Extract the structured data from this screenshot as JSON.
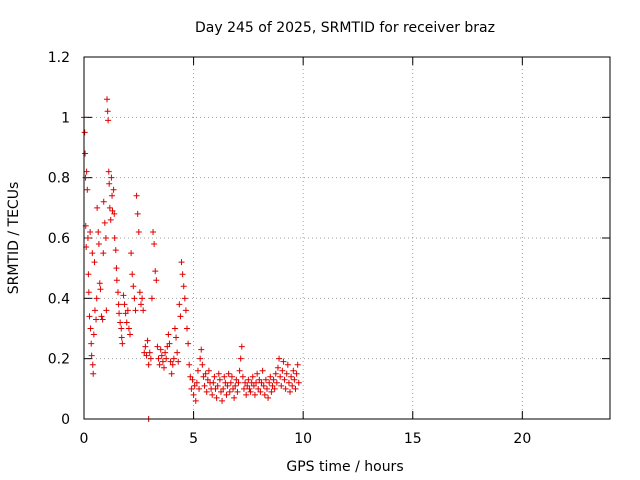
{
  "chart_data": {
    "type": "scatter",
    "title": "Day 245 of 2025, SRMTID for receiver braz",
    "xlabel": "GPS time / hours",
    "ylabel": "SRMTID / TECUs",
    "xlim": [
      0,
      24
    ],
    "ylim": [
      0,
      1.2
    ],
    "xticks": [
      0,
      5,
      10,
      15,
      20
    ],
    "xtick_labels": [
      "0",
      "5",
      "10",
      "15",
      "20"
    ],
    "yticks": [
      0,
      0.2,
      0.4,
      0.6,
      0.8,
      1.0,
      1.2
    ],
    "ytick_labels": [
      "0",
      "0.2",
      "0.4",
      "0.6",
      "0.8",
      "1",
      "1.2"
    ],
    "grid": true,
    "marker": "+",
    "color": "#e00000",
    "series": [
      {
        "name": "SRMTID",
        "points": [
          [
            0.0,
            1.0
          ],
          [
            0.03,
            0.95
          ],
          [
            0.05,
            0.88
          ],
          [
            0.07,
            0.8
          ],
          [
            0.08,
            0.64
          ],
          [
            0.1,
            0.57
          ],
          [
            0.12,
            0.82
          ],
          [
            0.15,
            0.76
          ],
          [
            0.18,
            0.6
          ],
          [
            0.2,
            0.48
          ],
          [
            0.22,
            0.42
          ],
          [
            0.25,
            0.34
          ],
          [
            0.28,
            0.62
          ],
          [
            0.3,
            0.3
          ],
          [
            0.33,
            0.25
          ],
          [
            0.35,
            0.21
          ],
          [
            0.38,
            0.55
          ],
          [
            0.4,
            0.18
          ],
          [
            0.42,
            0.15
          ],
          [
            0.45,
            0.28
          ],
          [
            0.48,
            0.52
          ],
          [
            0.5,
            0.36
          ],
          [
            0.55,
            0.33
          ],
          [
            0.58,
            0.4
          ],
          [
            0.6,
            0.7
          ],
          [
            0.65,
            0.62
          ],
          [
            0.68,
            0.58
          ],
          [
            0.72,
            0.45
          ],
          [
            0.75,
            0.43
          ],
          [
            0.8,
            0.34
          ],
          [
            0.85,
            0.33
          ],
          [
            0.88,
            0.55
          ],
          [
            0.9,
            0.72
          ],
          [
            0.95,
            0.65
          ],
          [
            1.0,
            0.6
          ],
          [
            1.02,
            0.36
          ],
          [
            1.05,
            1.06
          ],
          [
            1.08,
            1.02
          ],
          [
            1.1,
            0.99
          ],
          [
            1.13,
            0.82
          ],
          [
            1.15,
            0.78
          ],
          [
            1.18,
            0.7
          ],
          [
            1.22,
            0.66
          ],
          [
            1.25,
            0.8
          ],
          [
            1.28,
            0.74
          ],
          [
            1.3,
            0.69
          ],
          [
            1.35,
            0.76
          ],
          [
            1.38,
            0.68
          ],
          [
            1.4,
            0.6
          ],
          [
            1.45,
            0.56
          ],
          [
            1.48,
            0.5
          ],
          [
            1.5,
            0.46
          ],
          [
            1.55,
            0.42
          ],
          [
            1.58,
            0.38
          ],
          [
            1.6,
            0.35
          ],
          [
            1.65,
            0.32
          ],
          [
            1.7,
            0.3
          ],
          [
            1.72,
            0.27
          ],
          [
            1.75,
            0.25
          ],
          [
            1.8,
            0.41
          ],
          [
            1.85,
            0.38
          ],
          [
            1.9,
            0.35
          ],
          [
            1.95,
            0.32
          ],
          [
            2.0,
            0.36
          ],
          [
            2.05,
            0.3
          ],
          [
            2.1,
            0.28
          ],
          [
            2.15,
            0.55
          ],
          [
            2.2,
            0.48
          ],
          [
            2.25,
            0.44
          ],
          [
            2.3,
            0.4
          ],
          [
            2.35,
            0.36
          ],
          [
            2.4,
            0.74
          ],
          [
            2.45,
            0.68
          ],
          [
            2.5,
            0.62
          ],
          [
            2.55,
            0.42
          ],
          [
            2.6,
            0.38
          ],
          [
            2.65,
            0.4
          ],
          [
            2.7,
            0.36
          ],
          [
            2.75,
            0.22
          ],
          [
            2.8,
            0.24
          ],
          [
            2.85,
            0.21
          ],
          [
            2.9,
            0.26
          ],
          [
            2.95,
            0.18
          ],
          [
            3.0,
            0.22
          ],
          [
            3.05,
            0.2
          ],
          [
            3.1,
            0.4
          ],
          [
            3.15,
            0.62
          ],
          [
            3.2,
            0.58
          ],
          [
            3.25,
            0.49
          ],
          [
            3.3,
            0.46
          ],
          [
            3.35,
            0.24
          ],
          [
            3.4,
            0.2
          ],
          [
            3.45,
            0.18
          ],
          [
            3.5,
            0.23
          ],
          [
            3.55,
            0.21
          ],
          [
            3.6,
            0.19
          ],
          [
            3.65,
            0.17
          ],
          [
            3.7,
            0.22
          ],
          [
            3.75,
            0.2
          ],
          [
            3.8,
            0.24
          ],
          [
            3.85,
            0.28
          ],
          [
            3.9,
            0.25
          ],
          [
            3.95,
            0.19
          ],
          [
            4.0,
            0.15
          ],
          [
            4.05,
            0.18
          ],
          [
            4.1,
            0.2
          ],
          [
            4.15,
            0.3
          ],
          [
            4.2,
            0.27
          ],
          [
            4.25,
            0.22
          ],
          [
            4.3,
            0.19
          ],
          [
            4.35,
            0.38
          ],
          [
            4.4,
            0.34
          ],
          [
            4.45,
            0.52
          ],
          [
            4.5,
            0.48
          ],
          [
            4.55,
            0.44
          ],
          [
            4.6,
            0.4
          ],
          [
            4.65,
            0.36
          ],
          [
            4.7,
            0.3
          ],
          [
            4.75,
            0.25
          ],
          [
            4.8,
            0.18
          ],
          [
            4.85,
            0.14
          ],
          [
            4.9,
            0.1
          ],
          [
            4.95,
            0.13
          ],
          [
            5.0,
            0.08
          ],
          [
            5.05,
            0.11
          ],
          [
            5.1,
            0.06
          ],
          [
            5.15,
            0.12
          ],
          [
            5.2,
            0.16
          ],
          [
            5.25,
            0.1
          ],
          [
            5.3,
            0.2
          ],
          [
            5.35,
            0.23
          ],
          [
            5.4,
            0.18
          ],
          [
            5.45,
            0.14
          ],
          [
            5.5,
            0.11
          ],
          [
            5.55,
            0.15
          ],
          [
            5.6,
            0.09
          ],
          [
            5.65,
            0.13
          ],
          [
            5.7,
            0.16
          ],
          [
            5.75,
            0.12
          ],
          [
            5.8,
            0.1
          ],
          [
            5.85,
            0.08
          ],
          [
            5.9,
            0.12
          ],
          [
            5.95,
            0.14
          ],
          [
            6.0,
            0.1
          ],
          [
            6.05,
            0.07
          ],
          [
            6.1,
            0.11
          ],
          [
            6.15,
            0.15
          ],
          [
            6.2,
            0.13
          ],
          [
            6.25,
            0.09
          ],
          [
            6.3,
            0.06
          ],
          [
            6.35,
            0.1
          ],
          [
            6.4,
            0.14
          ],
          [
            6.45,
            0.12
          ],
          [
            6.5,
            0.08
          ],
          [
            6.55,
            0.11
          ],
          [
            6.6,
            0.15
          ],
          [
            6.65,
            0.09
          ],
          [
            6.7,
            0.12
          ],
          [
            6.75,
            0.14
          ],
          [
            6.8,
            0.1
          ],
          [
            6.85,
            0.07
          ],
          [
            6.9,
            0.11
          ],
          [
            6.95,
            0.13
          ],
          [
            7.0,
            0.09
          ],
          [
            7.05,
            0.12
          ],
          [
            7.1,
            0.16
          ],
          [
            7.15,
            0.2
          ],
          [
            7.2,
            0.24
          ],
          [
            7.25,
            0.14
          ],
          [
            7.3,
            0.1
          ],
          [
            7.35,
            0.12
          ],
          [
            7.4,
            0.08
          ],
          [
            7.45,
            0.11
          ],
          [
            7.5,
            0.13
          ],
          [
            7.55,
            0.1
          ],
          [
            7.6,
            0.09
          ],
          [
            7.65,
            0.12
          ],
          [
            7.7,
            0.14
          ],
          [
            7.75,
            0.11
          ],
          [
            7.8,
            0.08
          ],
          [
            7.85,
            0.12
          ],
          [
            7.9,
            0.15
          ],
          [
            7.95,
            0.1
          ],
          [
            8.0,
            0.13
          ],
          [
            8.05,
            0.09
          ],
          [
            8.1,
            0.12
          ],
          [
            8.15,
            0.16
          ],
          [
            8.2,
            0.11
          ],
          [
            8.25,
            0.08
          ],
          [
            8.3,
            0.13
          ],
          [
            8.35,
            0.1
          ],
          [
            8.4,
            0.07
          ],
          [
            8.45,
            0.12
          ],
          [
            8.5,
            0.14
          ],
          [
            8.55,
            0.09
          ],
          [
            8.6,
            0.11
          ],
          [
            8.65,
            0.13
          ],
          [
            8.7,
            0.1
          ],
          [
            8.75,
            0.15
          ],
          [
            8.8,
            0.12
          ],
          [
            8.85,
            0.17
          ],
          [
            8.9,
            0.2
          ],
          [
            8.95,
            0.14
          ],
          [
            9.0,
            0.11
          ],
          [
            9.05,
            0.16
          ],
          [
            9.1,
            0.19
          ],
          [
            9.15,
            0.13
          ],
          [
            9.2,
            0.1
          ],
          [
            9.25,
            0.15
          ],
          [
            9.3,
            0.18
          ],
          [
            9.35,
            0.12
          ],
          [
            9.4,
            0.09
          ],
          [
            9.45,
            0.14
          ],
          [
            9.5,
            0.11
          ],
          [
            9.55,
            0.16
          ],
          [
            9.6,
            0.13
          ],
          [
            9.65,
            0.1
          ],
          [
            9.7,
            0.15
          ],
          [
            9.75,
            0.18
          ],
          [
            9.8,
            0.12
          ],
          [
            2.95,
            0.0
          ]
        ]
      }
    ]
  }
}
